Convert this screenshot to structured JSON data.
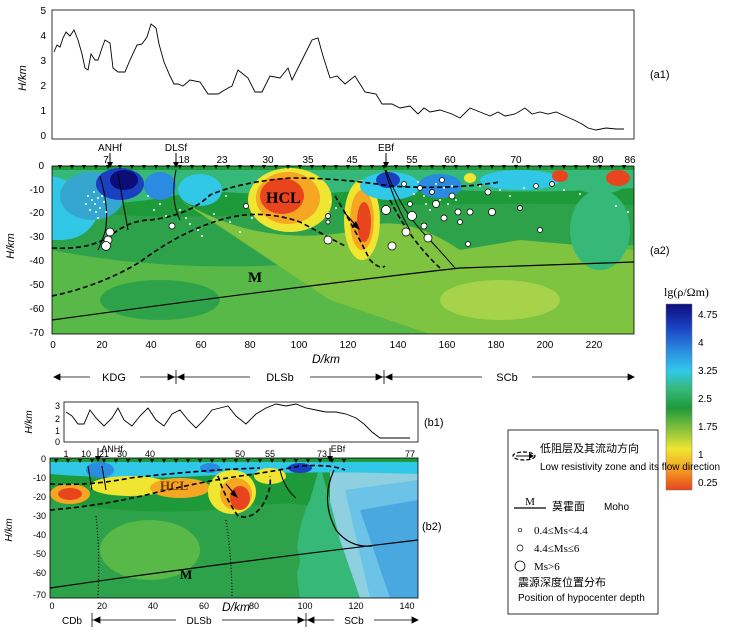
{
  "panels": {
    "a1": {
      "label": "(a1)",
      "ylabel": "H/km",
      "y_ticks": [
        "0",
        "1",
        "2",
        "3",
        "4",
        "5"
      ]
    },
    "a2": {
      "label": "(a2)",
      "ylabel": "H/km",
      "xlabel": "D/km",
      "y_ticks": [
        "0",
        "-10",
        "-20",
        "-30",
        "-40",
        "-50",
        "-60",
        "-70"
      ],
      "x_ticks": [
        "0",
        "20",
        "40",
        "60",
        "80",
        "100",
        "120",
        "140",
        "160",
        "180",
        "200",
        "220"
      ],
      "station_numbers": [
        "7",
        "18",
        "23",
        "30",
        "35",
        "45",
        "55",
        "60",
        "70",
        "80",
        "86"
      ],
      "faults": [
        "ANHf",
        "DLSf",
        "EBf"
      ],
      "hcl": "HCL",
      "moho": "M",
      "regions": [
        "KDG",
        "DLSb",
        "SCb"
      ]
    },
    "b1": {
      "label": "(b1)",
      "ylabel": "H/km",
      "y_ticks": [
        "0",
        "1",
        "2",
        "3"
      ]
    },
    "b2": {
      "label": "(b2)",
      "ylabel": "H/km",
      "xlabel": "D/km",
      "y_ticks": [
        "0",
        "-10",
        "-20",
        "-30",
        "-40",
        "-50",
        "-60",
        "-70"
      ],
      "x_ticks": [
        "0",
        "20",
        "40",
        "60",
        "80",
        "100",
        "120",
        "140"
      ],
      "station_numbers": [
        "1",
        "10",
        "21",
        "30",
        "40",
        "50",
        "55",
        "73",
        "77"
      ],
      "faults": [
        "ANHf",
        "EBf"
      ],
      "hcl": "HCL",
      "moho": "M",
      "regions": [
        "CDb",
        "DLSb",
        "SCb"
      ]
    }
  },
  "colorbar": {
    "title": "lg(ρ/Ωm)",
    "ticks": [
      "4.75",
      "4",
      "3.25",
      "2.5",
      "1.75",
      "1",
      "0.25"
    ],
    "colors": [
      "#0d0d7a",
      "#1a3fbf",
      "#2b8be0",
      "#31c8e8",
      "#35b878",
      "#1f9a3a",
      "#8cc43c",
      "#f0e632",
      "#f5a623",
      "#e8441e"
    ]
  },
  "legend": {
    "zone_cn": "低阻层及其流动方向",
    "zone_en": "Low resistivity zone and its flow direction",
    "moho_symbol": "M",
    "moho_cn": "莫霍面",
    "moho_en": "Moho",
    "ms1": "0.4≤Ms<4.4",
    "ms2": "4.4≤Ms≤6",
    "ms3": "Ms>6",
    "hypo_cn": "震源深度位置分布",
    "hypo_en": "Position of hypocenter depth"
  }
}
